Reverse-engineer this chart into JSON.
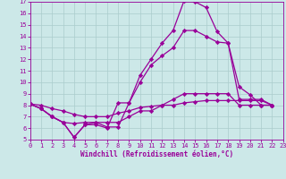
{
  "xlabel": "Windchill (Refroidissement éolien,°C)",
  "xlim": [
    0,
    23
  ],
  "ylim": [
    5,
    17
  ],
  "xticks": [
    0,
    1,
    2,
    3,
    4,
    5,
    6,
    7,
    8,
    9,
    10,
    11,
    12,
    13,
    14,
    15,
    16,
    17,
    18,
    19,
    20,
    21,
    22,
    23
  ],
  "yticks": [
    5,
    6,
    7,
    8,
    9,
    10,
    11,
    12,
    13,
    14,
    15,
    16,
    17
  ],
  "bg_color": "#cce8e8",
  "line_color": "#990099",
  "grid_color": "#aacccc",
  "series": [
    [
      8.1,
      7.7,
      7.0,
      6.5,
      5.2,
      6.3,
      6.5,
      6.1,
      6.1,
      8.2,
      10.6,
      12.0,
      13.4,
      14.5,
      17.1,
      17.0,
      16.5,
      14.4,
      13.4,
      9.6,
      8.9,
      8.0,
      8.0
    ],
    [
      8.1,
      7.7,
      7.0,
      6.5,
      5.2,
      6.3,
      6.3,
      6.0,
      8.2,
      8.2,
      10.0,
      11.5,
      12.3,
      13.0,
      14.5,
      14.5,
      14.0,
      13.5,
      13.4,
      8.5,
      8.5,
      8.5,
      8.0
    ],
    [
      8.1,
      7.7,
      7.0,
      6.5,
      6.4,
      6.5,
      6.5,
      6.5,
      6.5,
      7.0,
      7.5,
      7.5,
      8.0,
      8.5,
      9.0,
      9.0,
      9.0,
      9.0,
      9.0,
      8.0,
      8.0,
      8.0,
      8.0
    ],
    [
      8.1,
      8.0,
      7.7,
      7.5,
      7.2,
      7.0,
      7.0,
      7.0,
      7.3,
      7.5,
      7.8,
      7.9,
      8.0,
      8.0,
      8.2,
      8.3,
      8.4,
      8.4,
      8.4,
      8.4,
      8.4,
      8.4,
      8.0
    ]
  ],
  "marker": "D",
  "markersize": 2.2,
  "linewidth": 0.9,
  "font_family": "monospace",
  "tick_fontsize": 5.0,
  "xlabel_fontsize": 5.5
}
